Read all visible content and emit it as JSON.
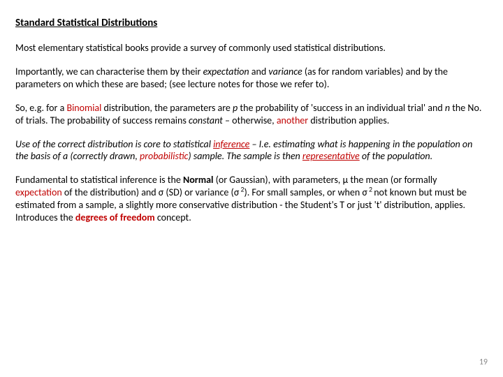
{
  "colors": {
    "text": "#000000",
    "accent_red": "#c00000",
    "pagenum": "#8a8a8a",
    "background": "#ffffff"
  },
  "typography": {
    "font_family": "Calibri",
    "heading_size_pt": 15,
    "body_size_pt": 14,
    "pagenum_size_pt": 12,
    "line_height": 1.28
  },
  "heading": "Standard Statistical Distributions",
  "p1": "Most elementary statistical books provide a survey of commonly used statistical distributions.",
  "p2": {
    "a": "Importantly, we can characterise them by their ",
    "expectation": "expectation",
    "b": " and ",
    "variance": "variance",
    "c": " (as for random variables) and by the parameters on which these are based; (see lecture notes for those we refer to)."
  },
  "p3": {
    "a": "So, e.g. for a ",
    "binomial": "Binomial",
    "b": " distribution, the parameters are ",
    "p": "p",
    "c": " the probability of 'success in an individual trial' and ",
    "n": "n",
    "d": " the No. of trials. The probability of success remains ",
    "constant": "constant",
    "e": " – otherwise, ",
    "another": "another",
    "f": " distribution applies."
  },
  "p4": {
    "a": "Use of the correct distribution is core to statistical ",
    "inference": "inference",
    "b": " – I.e. ",
    "est": "estimating what is happening in the population on the basis of a (correctly drawn, ",
    "prob": "probabilistic",
    "c": ") sample. The sample is then ",
    "rep": "representative",
    "d": " of the population."
  },
  "p5": {
    "a": "Fundamental to statistical inference is the ",
    "normal": "Normal",
    "b": " (or Gaussian), with parameters, ",
    "mu": "μ",
    "c": " the mean (or formally ",
    "expectation": "expectation",
    "d": " of the distribution) and ",
    "sigma1": "σ",
    "e": " (SD) or variance  (",
    "sigma2": "σ",
    "sq1": " 2",
    "f": ").  For small samples, or when  ",
    "sigma3": "σ",
    "sq2": " 2 ",
    "g": "not known but must be estimated from a sample, a slightly more conservative distribution - the Student's T or just 't' distribution, applies. Introduces the ",
    "dof": "degrees of freedom",
    "h": " concept."
  },
  "page_number": "19"
}
